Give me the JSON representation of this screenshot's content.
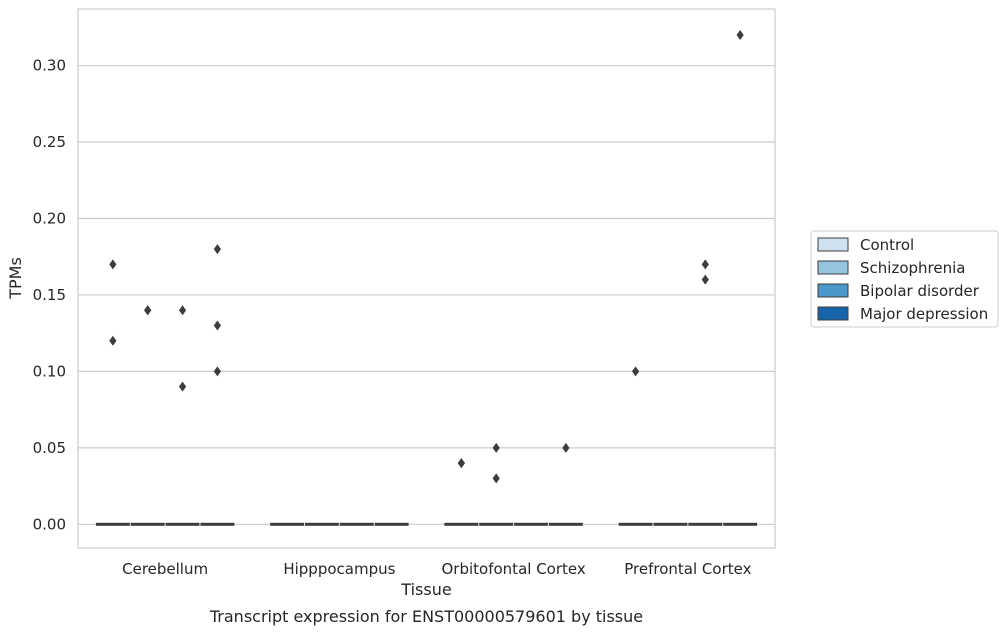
{
  "chart_data": {
    "type": "box",
    "xlabel": "Tissue",
    "ylabel": "TPMs",
    "caption": "Transcript expression for ENST00000579601 by tissue",
    "ylim": [
      -0.0155,
      0.337
    ],
    "yticks": [
      "0.00",
      "0.05",
      "0.10",
      "0.15",
      "0.20",
      "0.25",
      "0.30"
    ],
    "ytick_values": [
      0.0,
      0.05,
      0.1,
      0.15,
      0.2,
      0.25,
      0.3
    ],
    "grid": "horizontal",
    "legend_position": "right",
    "categories": [
      "Cerebellum",
      "Hipppocampus",
      "Orbitofontal Cortex",
      "Prefrontal Cortex"
    ],
    "series": [
      {
        "name": "Control",
        "color": "#d0e1f2",
        "median": [
          0,
          0,
          0,
          0
        ],
        "outliers": [
          [
            0.17,
            0.12
          ],
          [],
          [
            0.04,
            0.04
          ],
          [
            0.1
          ]
        ]
      },
      {
        "name": "Schizophrenia",
        "color": "#94c4df",
        "median": [
          0,
          0,
          0,
          0
        ],
        "outliers": [
          [
            0.14,
            0.14
          ],
          [],
          [
            0.05,
            0.03
          ],
          []
        ]
      },
      {
        "name": "Bipolar disorder",
        "color": "#4a98c9",
        "median": [
          0,
          0,
          0,
          0
        ],
        "outliers": [
          [
            0.14,
            0.09
          ],
          [],
          [],
          [
            0.17,
            0.16
          ]
        ]
      },
      {
        "name": "Major depression",
        "color": "#1764ab",
        "median": [
          0,
          0,
          0,
          0
        ],
        "outliers": [
          [
            0.18,
            0.13,
            0.1
          ],
          [],
          [
            0.05
          ],
          [
            0.32
          ]
        ]
      }
    ]
  }
}
